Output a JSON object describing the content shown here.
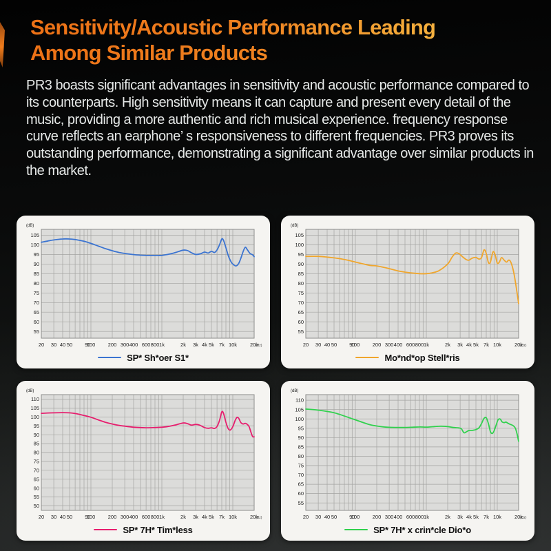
{
  "header": {
    "title_line1": "Sensitivity/Acoustic Performance Leading",
    "title_line2": "Among Similar Products",
    "title_gradient_start": "#ed7116",
    "title_gradient_end": "#f9c34f"
  },
  "intro": {
    "text": "PR3 boasts significant advantages in sensitivity and acoustic performance compared to its counterparts. High sensitivity means it can capture and present every detail of the music, providing a more authentic and rich musical experience. frequency response curve reflects an earphone’ s responsiveness to different frequencies. PR3 proves its outstanding performance, demonstrating a significant advantage over similar products in the market."
  },
  "chart_style": {
    "panel_bg": "#f5f4f1",
    "plot_bg": "#dcdcda",
    "grid_color": "#a3a3a1",
    "frame_color": "#8c8c8a",
    "tick_text_color": "#1c1c1c"
  },
  "chart_data": [
    {
      "type": "line",
      "legend": "SP* Sh*oer S1*",
      "color": "#3b74d1",
      "y_unit": "(dB)",
      "x_unit": "(Hz)",
      "xlim": [
        20,
        20000
      ],
      "ylim": [
        51.5,
        108
      ],
      "yticks": [
        105,
        100,
        95,
        90,
        85,
        80,
        75,
        70,
        65,
        60,
        55
      ],
      "xtick_f": [
        20,
        30,
        40,
        50,
        90,
        100,
        200,
        300,
        400,
        600,
        800,
        1000,
        2000,
        3000,
        4000,
        5000,
        7000,
        10000,
        20000
      ],
      "xtick_label": [
        "20",
        "30",
        "40",
        "50",
        "90",
        "100",
        "200",
        "300",
        "400",
        "600",
        "800",
        "1k",
        "2k",
        "3k",
        "4k",
        "5k",
        "7k",
        "10k",
        "20k"
      ],
      "grid_f": [
        20,
        30,
        40,
        50,
        60,
        70,
        80,
        90,
        100,
        200,
        300,
        400,
        500,
        600,
        700,
        800,
        900,
        1000,
        2000,
        3000,
        4000,
        5000,
        6000,
        7000,
        8000,
        9000,
        10000,
        20000
      ],
      "series": [
        {
          "name": "SP* Sh*oer S1*",
          "x": [
            20,
            25,
            30,
            40,
            50,
            60,
            80,
            100,
            130,
            160,
            200,
            250,
            300,
            400,
            500,
            600,
            800,
            1000,
            1300,
            1600,
            2000,
            2300,
            2600,
            3000,
            3500,
            4000,
            4500,
            5000,
            5500,
            6000,
            6500,
            7000,
            7400,
            8000,
            8700,
            9500,
            10000,
            11000,
            12000,
            13000,
            14000,
            15000,
            16000,
            17500,
            19000,
            20000
          ],
          "y": [
            101.3,
            102,
            102.5,
            103,
            103,
            102.7,
            101.8,
            100.7,
            99.2,
            98,
            96.9,
            96,
            95.5,
            94.9,
            94.6,
            94.5,
            94.4,
            94.5,
            95.2,
            96.1,
            97.2,
            97,
            95.9,
            95,
            95.3,
            96.2,
            95.7,
            96.6,
            96,
            97.3,
            100,
            103,
            102.3,
            98.5,
            94,
            91,
            90,
            89,
            90,
            93,
            96.5,
            98.7,
            97.5,
            95.5,
            94.8,
            93.8
          ]
        }
      ]
    },
    {
      "type": "line",
      "legend": "Mo*nd*op Stell*ris",
      "color": "#f0a62c",
      "y_unit": "(dB)",
      "x_unit": "(Hz)",
      "xlim": [
        20,
        20000
      ],
      "ylim": [
        51.5,
        108
      ],
      "yticks": [
        105,
        100,
        95,
        90,
        85,
        80,
        75,
        70,
        65,
        60,
        55
      ],
      "xtick_f": [
        20,
        30,
        40,
        50,
        90,
        100,
        200,
        300,
        400,
        600,
        800,
        1000,
        2000,
        3000,
        4000,
        5000,
        7000,
        10000,
        20000
      ],
      "xtick_label": [
        "20",
        "30",
        "40",
        "50",
        "90",
        "100",
        "200",
        "300",
        "400",
        "600",
        "800",
        "1k",
        "2k",
        "3k",
        "4k",
        "5k",
        "7k",
        "10k",
        "20k"
      ],
      "grid_f": [
        20,
        30,
        40,
        50,
        60,
        70,
        80,
        90,
        100,
        200,
        300,
        400,
        500,
        600,
        700,
        800,
        900,
        1000,
        2000,
        3000,
        4000,
        5000,
        6000,
        7000,
        8000,
        9000,
        10000,
        20000
      ],
      "series": [
        {
          "name": "Mo*nd*op Stell*ris",
          "x": [
            20,
            30,
            40,
            50,
            60,
            80,
            100,
            130,
            160,
            200,
            250,
            300,
            400,
            500,
            600,
            800,
            1000,
            1200,
            1500,
            2000,
            2300,
            2600,
            2900,
            3300,
            3700,
            4000,
            4400,
            5000,
            5500,
            6000,
            6500,
            7000,
            7500,
            8000,
            8700,
            9300,
            10000,
            10700,
            11500,
            12500,
            13500,
            14500,
            15500,
            17000,
            18500,
            20000
          ],
          "y": [
            94,
            94,
            93.6,
            93.2,
            92.8,
            91.9,
            91,
            90,
            89.3,
            89,
            88.3,
            87.6,
            86.4,
            85.8,
            85.4,
            85,
            85,
            85.4,
            86.5,
            90,
            93.5,
            95.7,
            95.3,
            93.5,
            92.2,
            92,
            93,
            93.4,
            92.6,
            93.3,
            97.3,
            95.5,
            90.8,
            91,
            96.3,
            95,
            90.5,
            91,
            93.3,
            92,
            91,
            92,
            91,
            86,
            78,
            69.5
          ]
        }
      ]
    },
    {
      "type": "line",
      "legend": "SP* 7H* Tim*less",
      "color": "#e71e6e",
      "y_unit": "(dB)",
      "x_unit": "(Hz)",
      "xlim": [
        20,
        20000
      ],
      "ylim": [
        47.5,
        112.5
      ],
      "yticks": [
        110,
        105,
        100,
        95,
        90,
        85,
        80,
        75,
        70,
        65,
        60,
        55,
        50
      ],
      "xtick_f": [
        20,
        30,
        40,
        50,
        90,
        100,
        200,
        300,
        400,
        600,
        800,
        1000,
        2000,
        3000,
        4000,
        5000,
        7000,
        10000,
        20000
      ],
      "xtick_label": [
        "20",
        "30",
        "40",
        "50",
        "90",
        "100",
        "200",
        "300",
        "400",
        "600",
        "800",
        "1k",
        "2k",
        "3k",
        "4k",
        "5k",
        "7k",
        "10k",
        "20k"
      ],
      "grid_f": [
        20,
        30,
        40,
        50,
        60,
        70,
        80,
        90,
        100,
        200,
        300,
        400,
        500,
        600,
        700,
        800,
        900,
        1000,
        2000,
        3000,
        4000,
        5000,
        6000,
        7000,
        8000,
        9000,
        10000,
        20000
      ],
      "series": [
        {
          "name": "SP* 7H* Tim*less",
          "x": [
            20,
            30,
            40,
            50,
            60,
            80,
            100,
            130,
            160,
            200,
            250,
            300,
            400,
            500,
            600,
            800,
            1000,
            1300,
            1600,
            2000,
            2300,
            2600,
            3000,
            3400,
            4000,
            4500,
            5000,
            5500,
            6000,
            6500,
            7000,
            7400,
            8000,
            8600,
            9200,
            10000,
            10800,
            11500,
            12200,
            13000,
            14000,
            15000,
            16000,
            17000,
            18000,
            19000,
            20000
          ],
          "y": [
            102,
            102.3,
            102.4,
            102.3,
            101.9,
            100.8,
            99.8,
            98.2,
            97,
            96,
            95.2,
            94.8,
            94.2,
            94,
            93.9,
            94,
            94.2,
            94.8,
            95.6,
            96.6,
            96.2,
            95.4,
            95.8,
            95.4,
            94,
            93.6,
            93.9,
            93.5,
            94.6,
            98,
            102.8,
            102,
            97,
            93.5,
            92.6,
            94.5,
            98,
            99.8,
            99,
            96.8,
            96,
            96.4,
            95.8,
            94.5,
            91.5,
            89,
            88.8
          ]
        }
      ]
    },
    {
      "type": "line",
      "legend": "SP* 7H* x crin*cle Dio*o",
      "color": "#31d14e",
      "y_unit": "(dB)",
      "x_unit": "(Hz)",
      "xlim": [
        20,
        20000
      ],
      "ylim": [
        51,
        113
      ],
      "yticks": [
        110,
        105,
        100,
        95,
        90,
        85,
        80,
        75,
        70,
        65,
        60,
        55
      ],
      "xtick_f": [
        20,
        30,
        40,
        50,
        90,
        100,
        200,
        300,
        400,
        600,
        800,
        1000,
        2000,
        3000,
        4000,
        5000,
        7000,
        10000,
        20000
      ],
      "xtick_label": [
        "20",
        "30",
        "40",
        "50",
        "90",
        "100",
        "200",
        "300",
        "400",
        "600",
        "800",
        "1k",
        "2k",
        "3k",
        "4k",
        "5k",
        "7k",
        "10k",
        "20k"
      ],
      "grid_f": [
        20,
        30,
        40,
        50,
        60,
        70,
        80,
        90,
        100,
        200,
        300,
        400,
        500,
        600,
        700,
        800,
        900,
        1000,
        2000,
        3000,
        4000,
        5000,
        6000,
        7000,
        8000,
        9000,
        10000,
        20000
      ],
      "series": [
        {
          "name": "SP* 7H* x crin*cle Dio*o",
          "x": [
            20,
            30,
            40,
            50,
            60,
            80,
            100,
            130,
            160,
            200,
            250,
            300,
            400,
            500,
            600,
            800,
            1000,
            1300,
            1600,
            2000,
            2400,
            2800,
            3100,
            3400,
            3700,
            4000,
            4500,
            5000,
            5500,
            6000,
            6500,
            7000,
            7500,
            8000,
            8500,
            9000,
            9700,
            10300,
            11000,
            11700,
            12500,
            13200,
            14000,
            15000,
            16000,
            17000,
            18000,
            19000,
            20000
          ],
          "y": [
            105.3,
            104.7,
            104,
            103.3,
            102.4,
            100.8,
            99.5,
            98,
            96.9,
            96.2,
            95.7,
            95.5,
            95.4,
            95.4,
            95.5,
            95.7,
            95.6,
            95.9,
            96.1,
            95.9,
            95.4,
            95.2,
            94.8,
            92.6,
            93.2,
            93.8,
            93.9,
            94.3,
            95.2,
            97.5,
            100.3,
            100.6,
            97.5,
            93.2,
            92.2,
            93.5,
            97,
            99.6,
            99.9,
            98.4,
            98,
            98.3,
            97.8,
            97.2,
            96.8,
            96.2,
            95,
            92,
            88
          ]
        }
      ]
    }
  ]
}
